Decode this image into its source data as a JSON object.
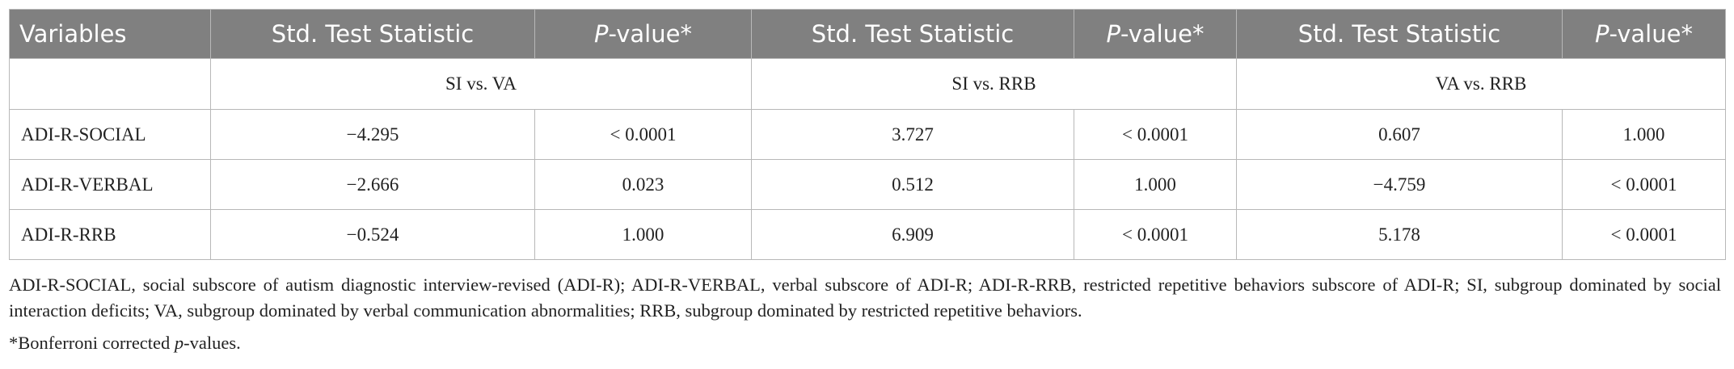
{
  "table": {
    "header": [
      "Variables",
      "Std. Test Statistic",
      {
        "italic": "P",
        "text": "-value*"
      },
      "Std. Test Statistic",
      {
        "italic": "P",
        "text": "-value*"
      },
      "Std. Test Statistic",
      {
        "italic": "P",
        "text": "-value*"
      }
    ],
    "groups": [
      "SI vs. VA",
      "SI vs. RRB",
      "VA vs. RRB"
    ],
    "rows": [
      [
        "ADI-R-SOCIAL",
        "−4.295",
        "< 0.0001",
        "3.727",
        "< 0.0001",
        "0.607",
        "1.000"
      ],
      [
        "ADI-R-VERBAL",
        "−2.666",
        "0.023",
        "0.512",
        "1.000",
        "−4.759",
        "< 0.0001"
      ],
      [
        "ADI-R-RRB",
        "−0.524",
        "1.000",
        "6.909",
        "< 0.0001",
        "5.178",
        "< 0.0001"
      ]
    ]
  },
  "notes": [
    "ADI-R-SOCIAL, social subscore of autism diagnostic interview-revised (ADI-R); ADI-R-VERBAL, verbal subscore of ADI-R; ADI-R-RRB, restricted repetitive behaviors subscore of ADI-R; SI, subgroup dominated by social interaction deficits; VA, subgroup dominated by verbal communication abnormalities; RRB, subgroup dominated by restricted repetitive behaviors.",
    {
      "before": "*Bonferroni corrected ",
      "italic": "p",
      "after": "-values."
    }
  ]
}
